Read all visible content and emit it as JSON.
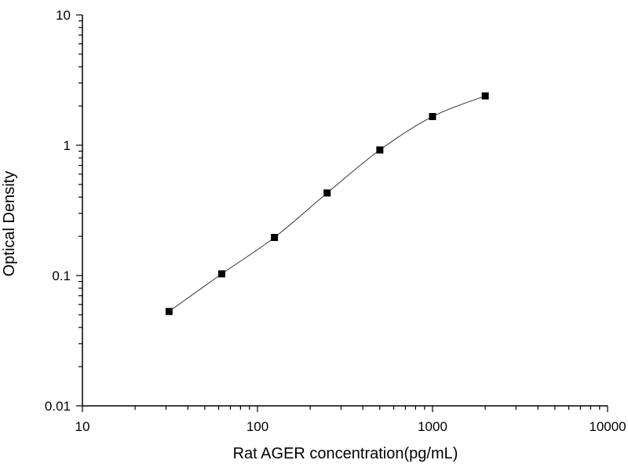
{
  "chart_data": {
    "type": "scatter",
    "title": "",
    "xlabel": "Rat AGER concentration(pg/mL)",
    "ylabel": "Optical Density",
    "xscale": "log",
    "yscale": "log",
    "xlim": [
      10,
      10000
    ],
    "ylim": [
      0.01,
      10
    ],
    "xticks": [
      "10",
      "100",
      "1000",
      "10000"
    ],
    "yticks": [
      "0.01",
      "0.1",
      "1",
      "10"
    ],
    "grid": false,
    "legend": "none",
    "marker": "square",
    "marker_color": "#000000",
    "fit_line": "smooth curve",
    "series": [
      {
        "x": [
          31.25,
          62.5,
          125,
          250,
          500,
          1000,
          2000
        ],
        "y": [
          0.053,
          0.103,
          0.196,
          0.43,
          0.92,
          1.66,
          2.39
        ]
      }
    ]
  }
}
